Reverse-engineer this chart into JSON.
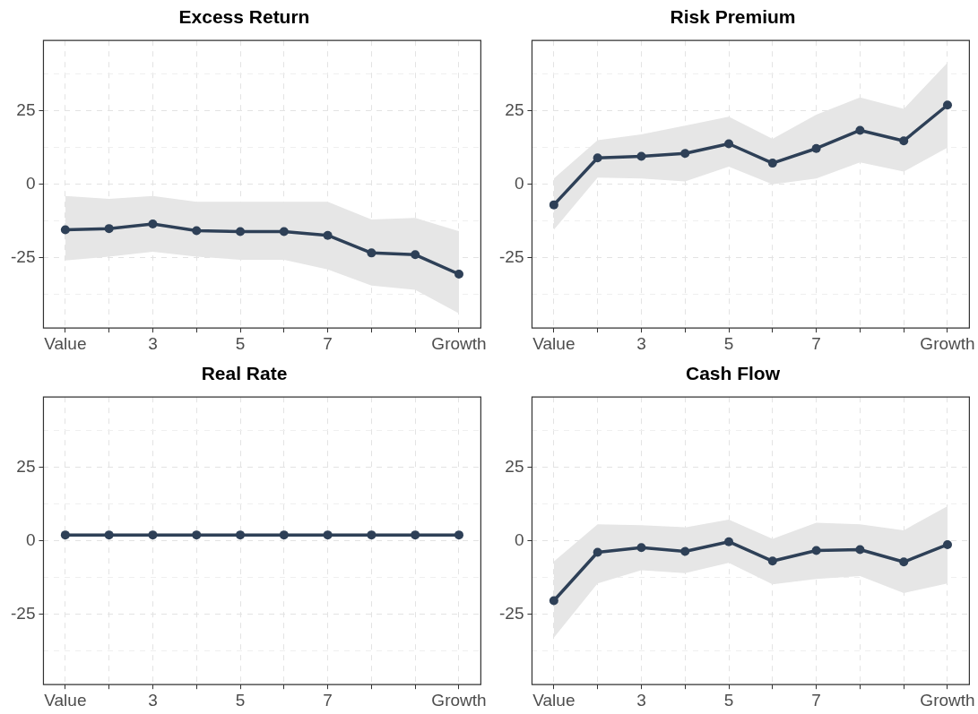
{
  "chart_data": [
    {
      "type": "line",
      "title": "Excess Return",
      "categories": [
        "Value",
        null,
        "3",
        null,
        "5",
        null,
        "7",
        null,
        null,
        "Growth"
      ],
      "series": [
        {
          "color": "#2e4057",
          "values": [
            -15.5,
            -15.1,
            -13.5,
            -15.8,
            -16.1,
            -16.1,
            -17.4,
            -23.4,
            -24.0,
            -30.6
          ],
          "lower": [
            -26,
            -24.7,
            -23,
            -24.7,
            -25.7,
            -25.7,
            -29,
            -34.5,
            -36,
            -44
          ],
          "upper": [
            -4,
            -5,
            -4,
            -6,
            -6,
            -6,
            -6,
            -12,
            -11.5,
            -16
          ]
        }
      ],
      "ylim": [
        -49,
        49
      ],
      "yticks": [
        {
          "value": -37.5,
          "label": null
        },
        -25,
        {
          "value": -12.5,
          "label": null
        },
        0,
        {
          "value": 12.5,
          "label": null
        },
        25,
        {
          "value": 37.5,
          "label": null
        }
      ],
      "grid": true,
      "marker": "circle",
      "line_style": "solid"
    },
    {
      "type": "line",
      "title": "Risk Premium",
      "categories": [
        "Value",
        null,
        "3",
        null,
        "5",
        null,
        "7",
        null,
        null,
        "Growth"
      ],
      "series": [
        {
          "color": "#2e4057",
          "values": [
            -7,
            9,
            9.5,
            10.5,
            13.8,
            7.2,
            12.2,
            18.4,
            14.8,
            27
          ],
          "lower": [
            -15.5,
            2.3,
            2,
            1,
            6,
            0,
            2,
            7.5,
            4.3,
            12.5
          ],
          "upper": [
            2,
            15,
            17,
            20,
            23,
            15.5,
            23.7,
            29.6,
            25.7,
            41.4
          ]
        }
      ],
      "ylim": [
        -49,
        49
      ],
      "yticks": [
        {
          "value": -37.5,
          "label": null
        },
        -25,
        {
          "value": -12.5,
          "label": null
        },
        0,
        {
          "value": 12.5,
          "label": null
        },
        25,
        {
          "value": 37.5,
          "label": null
        }
      ],
      "grid": true,
      "marker": "circle",
      "line_style": "solid"
    },
    {
      "type": "line",
      "title": "Real Rate",
      "categories": [
        "Value",
        null,
        "3",
        null,
        "5",
        null,
        "7",
        null,
        null,
        "Growth"
      ],
      "series": [
        {
          "color": "#2e4057",
          "values": [
            2,
            2,
            2,
            2,
            2,
            2,
            2,
            2,
            2,
            2
          ],
          "lower": [
            1.5,
            1.5,
            1.5,
            1.5,
            1.5,
            1.5,
            1.5,
            1.5,
            1.5,
            1.5
          ],
          "upper": [
            2.5,
            2.5,
            2.5,
            2.5,
            2.5,
            2.5,
            2.5,
            2.5,
            2.5,
            2.5
          ]
        }
      ],
      "ylim": [
        -49,
        49
      ],
      "yticks": [
        {
          "value": -37.5,
          "label": null
        },
        -25,
        {
          "value": -12.5,
          "label": null
        },
        0,
        {
          "value": 12.5,
          "label": null
        },
        25,
        {
          "value": 37.5,
          "label": null
        }
      ],
      "grid": true,
      "marker": "circle",
      "line_style": "solid"
    },
    {
      "type": "line",
      "title": "Cash Flow",
      "categories": [
        "Value",
        null,
        "3",
        null,
        "5",
        null,
        "7",
        null,
        null,
        "Growth"
      ],
      "series": [
        {
          "color": "#2e4057",
          "values": [
            -20.4,
            -3.9,
            -2.3,
            -3.6,
            -0.3,
            -6.9,
            -3.3,
            -3,
            -7.2,
            -1.3
          ],
          "lower": [
            -33,
            -14.5,
            -10,
            -11,
            -7.5,
            -14.8,
            -13,
            -12,
            -17.8,
            -14.5
          ],
          "upper": [
            -7,
            5.6,
            5.3,
            4.6,
            7.2,
            0.7,
            6.2,
            5.6,
            3.6,
            11.8
          ]
        }
      ],
      "ylim": [
        -49,
        49
      ],
      "yticks": [
        {
          "value": -37.5,
          "label": null
        },
        -25,
        {
          "value": -12.5,
          "label": null
        },
        0,
        {
          "value": 12.5,
          "label": null
        },
        25,
        {
          "value": 37.5,
          "label": null
        }
      ],
      "grid": true,
      "marker": "circle",
      "line_style": "solid"
    }
  ]
}
